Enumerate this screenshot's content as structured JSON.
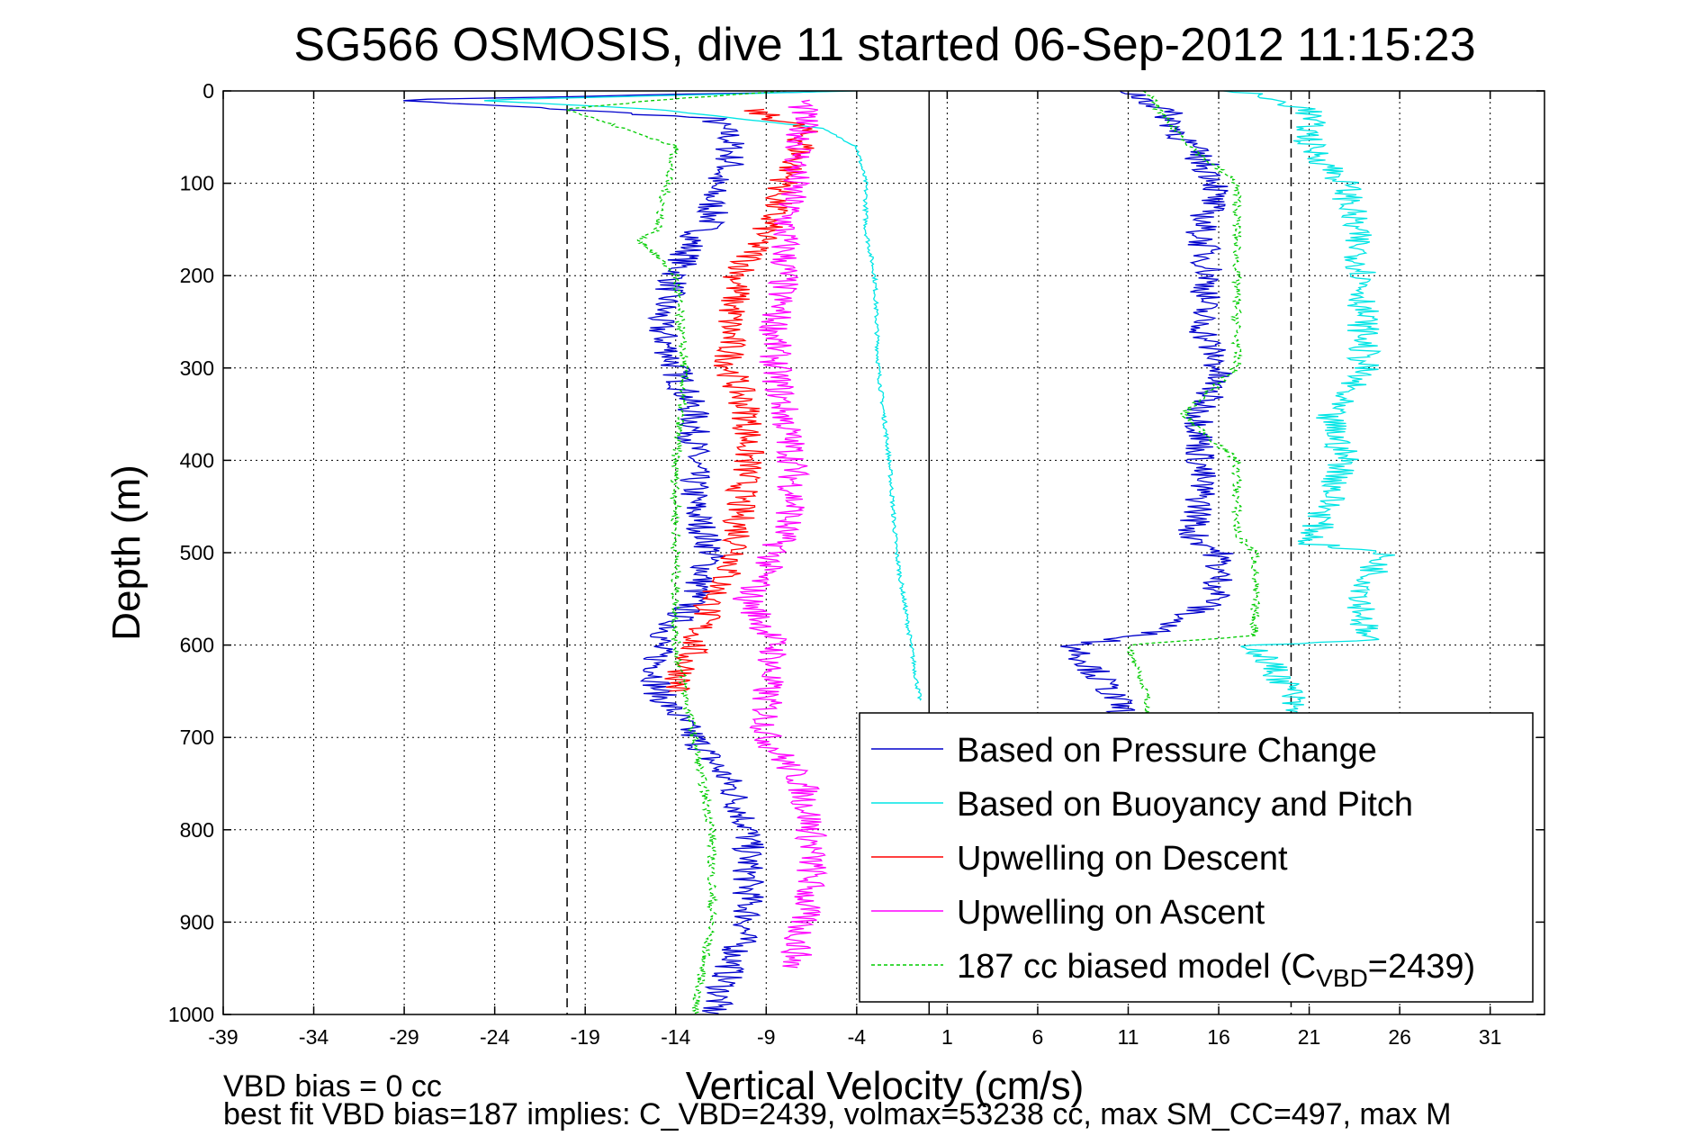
{
  "chart_data": {
    "type": "line",
    "title": "SG566 OSMOSIS, dive 11 started 06-Sep-2012 11:15:23",
    "xlabel": "Vertical Velocity (cm/s)",
    "ylabel": "Depth (m)",
    "xlim": [
      -39,
      34
    ],
    "ylim": [
      0,
      1000
    ],
    "y_reversed": true,
    "grid": true,
    "xticks": [
      -39,
      -34,
      -29,
      -24,
      -19,
      -14,
      -9,
      -4,
      1,
      6,
      11,
      16,
      21,
      26,
      31
    ],
    "xtick_labels": [
      "-39",
      "-34",
      "-29",
      "-24",
      "-19",
      "-14",
      "-9",
      "-4",
      "1",
      "6",
      "11",
      "16",
      "21",
      "26",
      "31"
    ],
    "yticks": [
      0,
      100,
      200,
      300,
      400,
      500,
      600,
      700,
      800,
      900,
      1000
    ],
    "ytick_labels": [
      "0",
      "100",
      "200",
      "300",
      "400",
      "500",
      "600",
      "700",
      "800",
      "900",
      "1000"
    ],
    "reference_lines": [
      {
        "x": -20,
        "style": "dashed",
        "color": "#000000"
      },
      {
        "x": 0,
        "style": "solid",
        "color": "#000000"
      },
      {
        "x": 20,
        "style": "dashed",
        "color": "#000000"
      }
    ],
    "legend_position": "bottom-right",
    "series": [
      {
        "name": "Based on Pressure Change",
        "color": "#0000cc",
        "style": "solid",
        "depth": [
          0,
          10,
          20,
          30,
          50,
          80,
          100,
          140,
          160,
          200,
          250,
          300,
          350,
          400,
          450,
          500,
          550,
          600,
          650,
          700,
          750,
          800,
          850,
          900,
          950,
          1000
        ],
        "velocity": [
          -4,
          -30,
          -20,
          -12,
          -11,
          -11,
          -12,
          -12,
          -13,
          -14,
          -15,
          -14,
          -13,
          -13,
          -13,
          -12,
          -13,
          -15,
          -15,
          -13,
          -11,
          -10,
          -10,
          -10,
          -11,
          -12
        ]
      },
      {
        "name": "Based on Buoyancy and Pitch",
        "color": "#00e5e5",
        "style": "solid",
        "depth": [
          0,
          10,
          20,
          40,
          60,
          100,
          150,
          200,
          300,
          400,
          500,
          600,
          650,
          660
        ],
        "velocity": [
          -4,
          -25,
          -15,
          -6,
          -4,
          -3.5,
          -3.5,
          -3,
          -2.8,
          -2.2,
          -1.8,
          -1,
          -0.6,
          -0.5
        ]
      },
      {
        "name": "Upwelling on Descent",
        "color": "#ff0000",
        "style": "solid",
        "depth": [
          20,
          40,
          60,
          100,
          150,
          200,
          250,
          300,
          350,
          400,
          450,
          500,
          550,
          600,
          650
        ],
        "velocity": [
          -10,
          -7,
          -7,
          -8,
          -9,
          -10.5,
          -11,
          -11,
          -10,
          -10,
          -10.5,
          -10.5,
          -12,
          -13,
          -14
        ]
      },
      {
        "name": "Upwelling on Ascent",
        "color": "#ff00ff",
        "style": "solid",
        "depth": [
          10,
          50,
          100,
          150,
          200,
          250,
          300,
          350,
          400,
          450,
          500,
          550,
          600,
          650,
          700,
          750,
          800,
          850,
          900,
          950
        ],
        "velocity": [
          -7,
          -7,
          -7.5,
          -8,
          -8,
          -8.5,
          -8.5,
          -8,
          -7.5,
          -7.5,
          -8.5,
          -10,
          -8.5,
          -9,
          -9,
          -7,
          -6.5,
          -6.5,
          -7,
          -7.5
        ]
      },
      {
        "name": "187 cc biased model (C",
        "name_sub": "VBD",
        "name_suffix": "=2439)",
        "color": "#00cc00",
        "style": "dashed",
        "depth": [
          0,
          10,
          20,
          40,
          60,
          100,
          150,
          160,
          200,
          300,
          400,
          500,
          600,
          700,
          800,
          900,
          1000
        ],
        "velocity": [
          -8,
          -15,
          -20,
          -17,
          -14,
          -14.5,
          -15,
          -16,
          -14,
          -13.5,
          -14,
          -14,
          -14,
          -13,
          -12,
          -12,
          -13
        ]
      },
      {
        "name": "",
        "color": "#0000cc",
        "style": "solid",
        "depth": [
          0,
          20,
          50,
          100,
          150,
          200,
          250,
          300,
          350,
          400,
          450,
          480,
          500,
          550,
          590,
          600,
          650,
          680
        ],
        "velocity": [
          11,
          13,
          14,
          16,
          15,
          15.5,
          15,
          16,
          15,
          15,
          15,
          14.5,
          16,
          16,
          12,
          8,
          10,
          11
        ]
      },
      {
        "name": "",
        "color": "#00cc00",
        "style": "dashed",
        "depth": [
          0,
          30,
          70,
          100,
          200,
          300,
          350,
          400,
          480,
          500,
          550,
          590,
          600,
          650,
          680
        ],
        "velocity": [
          12,
          13,
          15,
          17,
          17,
          17,
          14,
          17,
          17,
          18,
          18,
          18,
          11,
          12,
          12
        ]
      },
      {
        "name": "",
        "color": "#00e5e5",
        "style": "solid",
        "depth": [
          0,
          20,
          60,
          100,
          150,
          200,
          250,
          300,
          350,
          400,
          450,
          490,
          500,
          550,
          595,
          600,
          650,
          680
        ],
        "velocity": [
          17,
          21,
          21,
          23,
          23.5,
          24,
          24,
          24,
          22,
          23,
          22,
          21,
          25,
          24,
          24,
          18,
          20,
          20
        ]
      }
    ]
  },
  "footer": {
    "line1": "VBD bias = 0 cc",
    "line2": "best fit VBD bias=187 implies: C_VBD=2439, volmax=53238 cc, max SM_CC=497, max M"
  }
}
